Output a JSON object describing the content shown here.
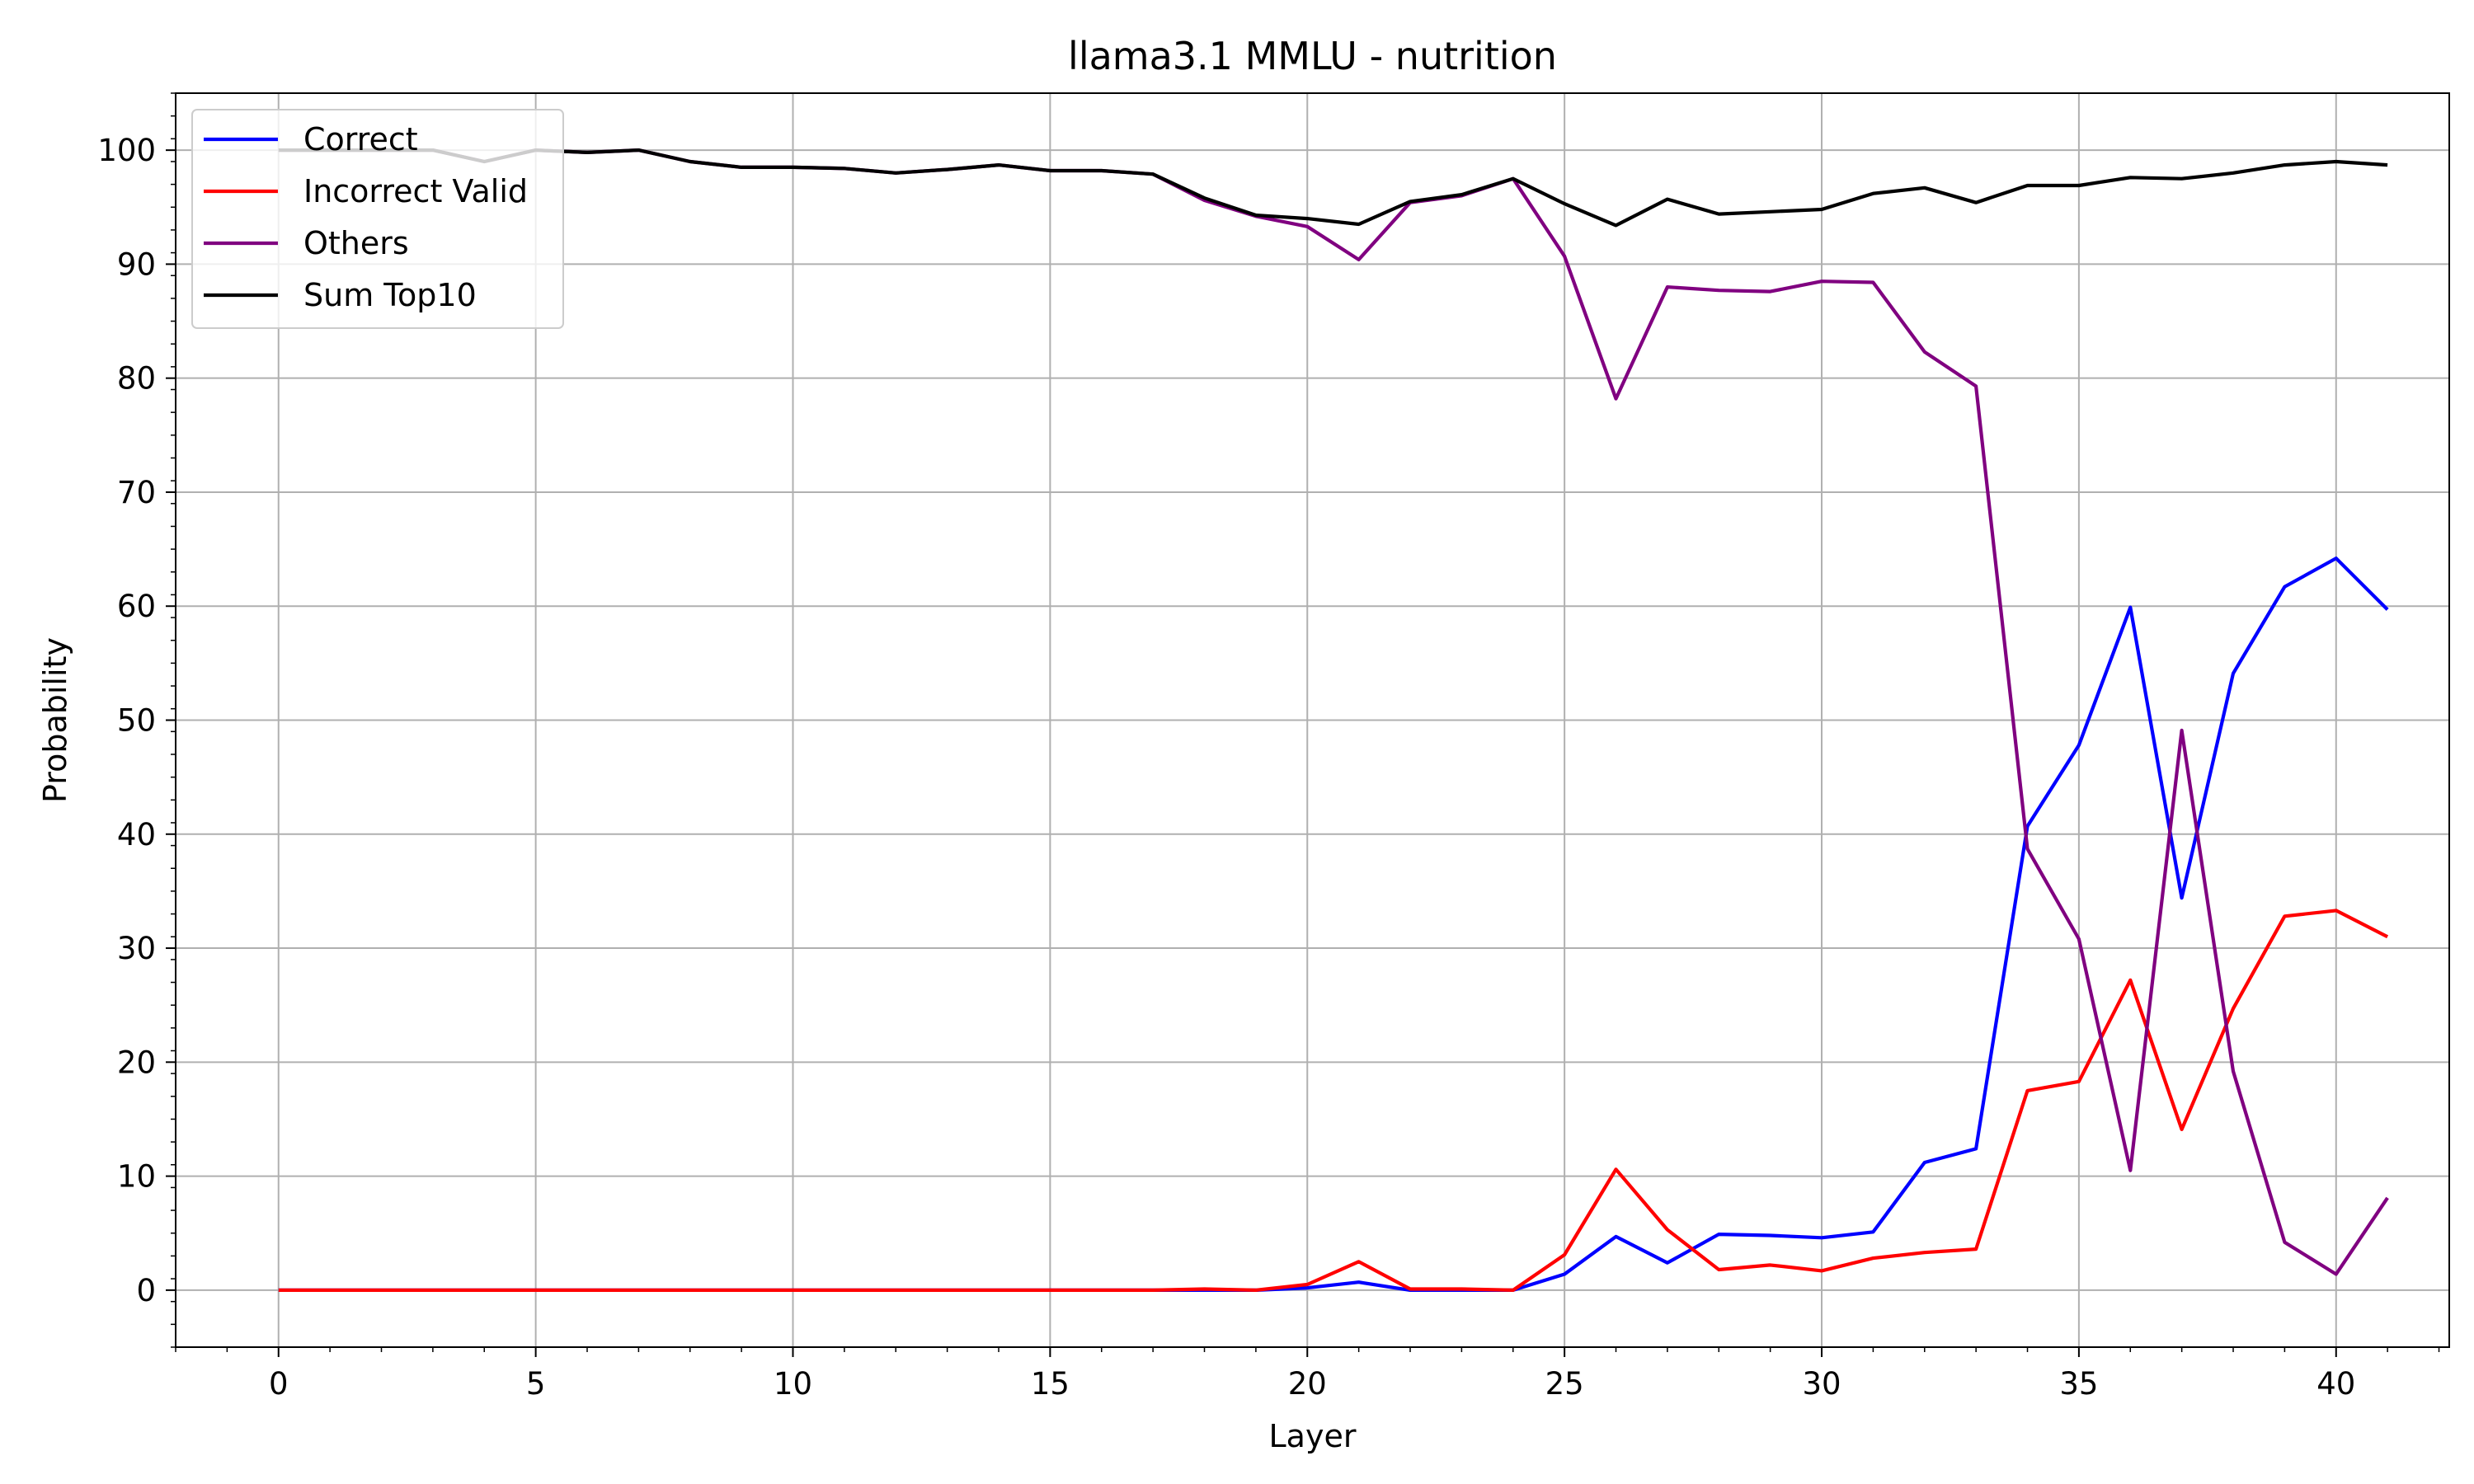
{
  "chart_data": {
    "type": "line",
    "title": "llama3.1 MMLU - nutrition",
    "xlabel": "Layer",
    "ylabel": "Probability",
    "xlim": [
      -2,
      42.2
    ],
    "ylim": [
      -5,
      105
    ],
    "xticks": [
      0,
      5,
      10,
      15,
      20,
      25,
      30,
      35,
      40
    ],
    "yticks": [
      0,
      10,
      20,
      30,
      40,
      50,
      60,
      70,
      80,
      90,
      100
    ],
    "grid": true,
    "legend_position": "upper left",
    "x": [
      0,
      1,
      2,
      3,
      4,
      5,
      6,
      7,
      8,
      9,
      10,
      11,
      12,
      13,
      14,
      15,
      16,
      17,
      18,
      19,
      20,
      21,
      22,
      23,
      24,
      25,
      26,
      27,
      28,
      29,
      30,
      31,
      32,
      33,
      34,
      35,
      36,
      37,
      38,
      39,
      40,
      41
    ],
    "series": [
      {
        "name": "Correct",
        "color": "#0000ff",
        "values": [
          0,
          0,
          0,
          0,
          0,
          0,
          0,
          0,
          0,
          0,
          0,
          0,
          0,
          0,
          0,
          0,
          0,
          0,
          0,
          0,
          0.2,
          0.7,
          0,
          0,
          0,
          1.4,
          4.7,
          2.4,
          4.9,
          4.8,
          4.6,
          5.1,
          11.2,
          12.4,
          40.7,
          47.8,
          59.9,
          34.4,
          54.1,
          61.7,
          64.2,
          59.7
        ]
      },
      {
        "name": "Incorrect Valid",
        "color": "#ff0000",
        "values": [
          0,
          0,
          0,
          0,
          0,
          0,
          0,
          0,
          0,
          0,
          0,
          0,
          0,
          0,
          0,
          0,
          0,
          0,
          0.1,
          0,
          0.5,
          2.5,
          0.1,
          0.1,
          0,
          3.1,
          10.6,
          5.3,
          1.8,
          2.2,
          1.7,
          2.8,
          3.3,
          3.6,
          17.5,
          18.3,
          27.2,
          14.1,
          24.7,
          32.8,
          33.3,
          31.0
        ]
      },
      {
        "name": "Others",
        "color": "#800080",
        "values": [
          100,
          100,
          100,
          100,
          99,
          100,
          99.8,
          100,
          99,
          98.5,
          98.5,
          98.4,
          98,
          98.3,
          98.7,
          98.2,
          98.2,
          97.9,
          95.6,
          94.2,
          93.3,
          90.4,
          95.4,
          96,
          97.5,
          90.7,
          78.2,
          88,
          87.7,
          87.6,
          88.5,
          88.4,
          82.3,
          79.3,
          38.7,
          30.8,
          10.5,
          49.1,
          19.2,
          4.2,
          1.4,
          8.1
        ]
      },
      {
        "name": "Sum Top10",
        "color": "#000000",
        "values": [
          100,
          100,
          100,
          100,
          99,
          100,
          99.8,
          100,
          99,
          98.5,
          98.5,
          98.4,
          98,
          98.3,
          98.7,
          98.2,
          98.2,
          97.9,
          95.8,
          94.3,
          94,
          93.5,
          95.5,
          96.1,
          97.5,
          95.3,
          93.4,
          95.7,
          94.4,
          94.6,
          94.8,
          96.2,
          96.7,
          95.4,
          96.9,
          96.9,
          97.6,
          97.5,
          98,
          98.7,
          99,
          98.7
        ]
      }
    ]
  }
}
